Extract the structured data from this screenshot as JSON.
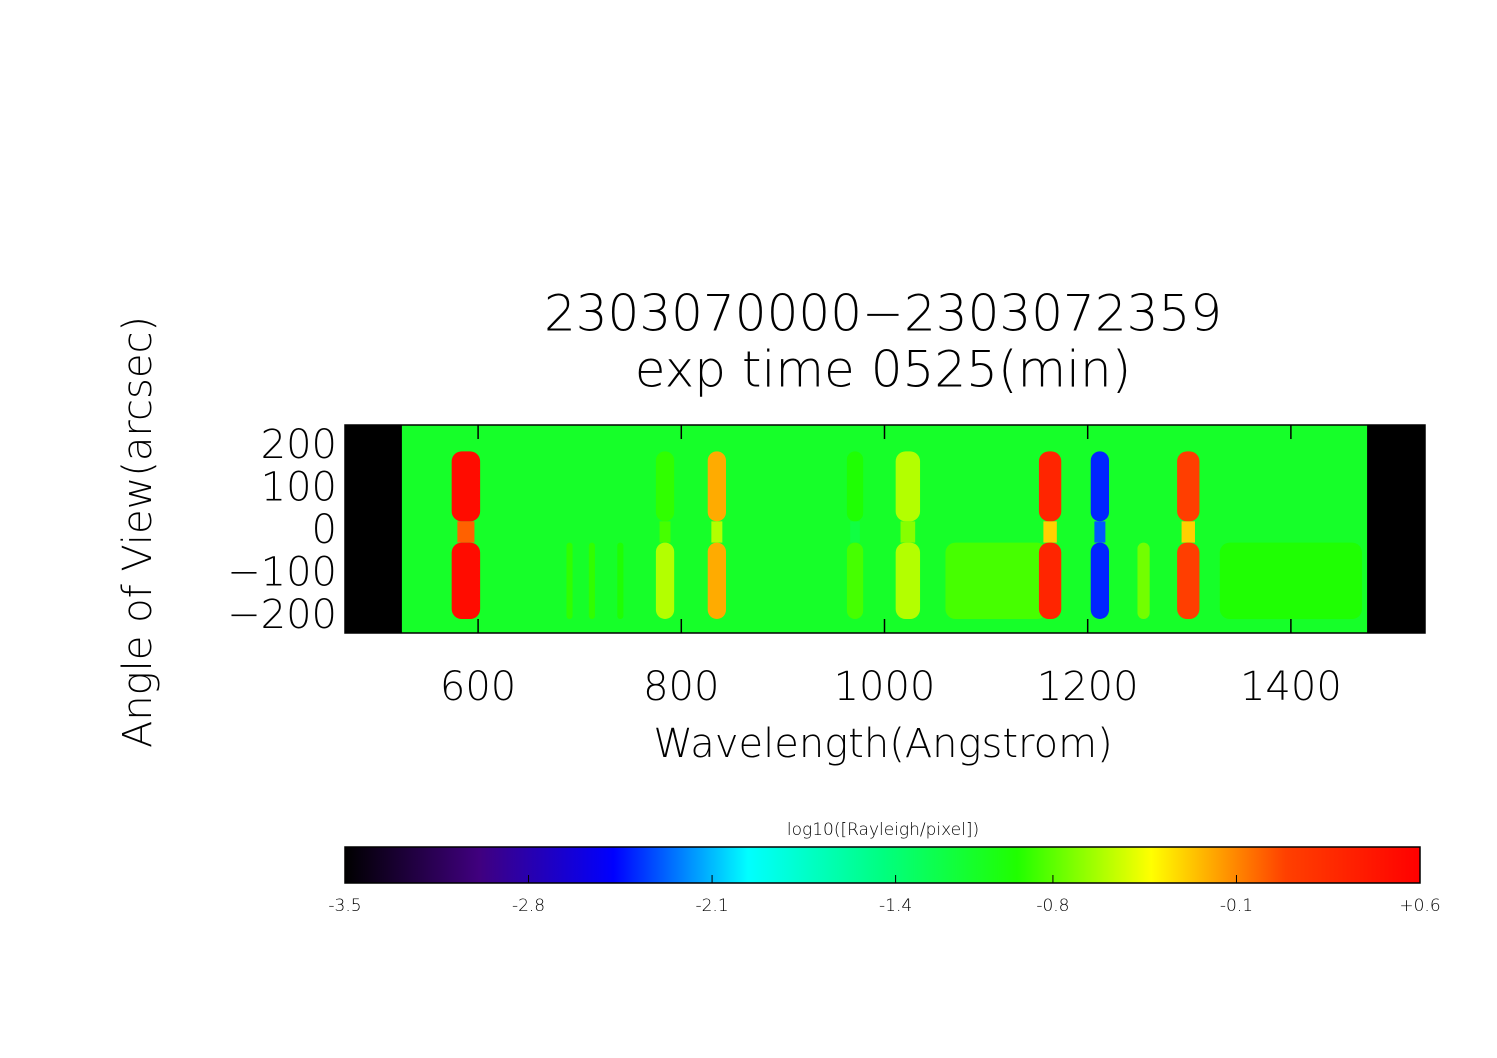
{
  "chart_data": {
    "type": "heatmap",
    "title": "2303070000−2303072359",
    "subtitle": "exp time 0525(min)",
    "x_label": "Wavelength(Angstrom)",
    "y_label": "Angle of View(arcsec)",
    "xlim": [
      469,
      1532
    ],
    "ylim": [
      -238,
      252
    ],
    "xticks": [
      600,
      800,
      1000,
      1200,
      1400
    ],
    "yticks": [
      200,
      100,
      0,
      {
        "value": -100,
        "label": "−100"
      },
      {
        "value": -200,
        "label": "−200"
      }
    ],
    "data_range": [
      525,
      1475
    ],
    "background": -1.1,
    "row_edges": [
      190,
      25,
      -25,
      -205
    ],
    "features": [
      {
        "wavelength": 588,
        "width": 28,
        "values": [
          0.5,
          0.0,
          0.5
        ]
      },
      {
        "wavelength": 690,
        "width": 6,
        "values": [
          null,
          null,
          -0.9
        ]
      },
      {
        "wavelength": 712,
        "width": 6,
        "values": [
          null,
          null,
          -0.9
        ]
      },
      {
        "wavelength": 740,
        "width": 6,
        "values": [
          null,
          null,
          -0.95
        ]
      },
      {
        "wavelength": 784,
        "width": 18,
        "values": [
          -0.9,
          -0.85,
          -0.6
        ]
      },
      {
        "wavelength": 835,
        "width": 18,
        "values": [
          -0.2,
          -0.6,
          -0.2
        ]
      },
      {
        "wavelength": 971,
        "width": 16,
        "values": [
          -0.95,
          -1.2,
          -0.85
        ]
      },
      {
        "wavelength": 1023,
        "width": 24,
        "values": [
          -0.6,
          -0.7,
          -0.6
        ]
      },
      {
        "wavelength": 1110,
        "width": 100,
        "values": [
          null,
          null,
          -0.85
        ]
      },
      {
        "wavelength": 1163,
        "width": 22,
        "values": [
          0.3,
          -0.3,
          0.3
        ]
      },
      {
        "wavelength": 1212,
        "width": 18,
        "values": [
          -2.4,
          -2.3,
          -2.4
        ]
      },
      {
        "wavelength": 1255,
        "width": 12,
        "values": [
          null,
          null,
          -0.75
        ]
      },
      {
        "wavelength": 1299,
        "width": 22,
        "values": [
          0.1,
          -0.3,
          0.1
        ]
      },
      {
        "wavelength": 1400,
        "width": 140,
        "values": [
          null,
          null,
          -0.95
        ]
      }
    ],
    "colorbar_label": "log10([Rayleigh/pixel])",
    "clim": [
      -3.5,
      0.6
    ],
    "cticks": [
      -3.5,
      -2.8,
      -2.1,
      -1.4,
      -0.8,
      -0.1,
      {
        "value": 0.6,
        "label": "+0.6"
      }
    ],
    "colormap": [
      "#000000",
      "#40007f",
      "#0000ff",
      "#00ffff",
      "#00ff80",
      "#20ff00",
      "#ffff00",
      "#ff4000",
      "#ff0000"
    ]
  }
}
